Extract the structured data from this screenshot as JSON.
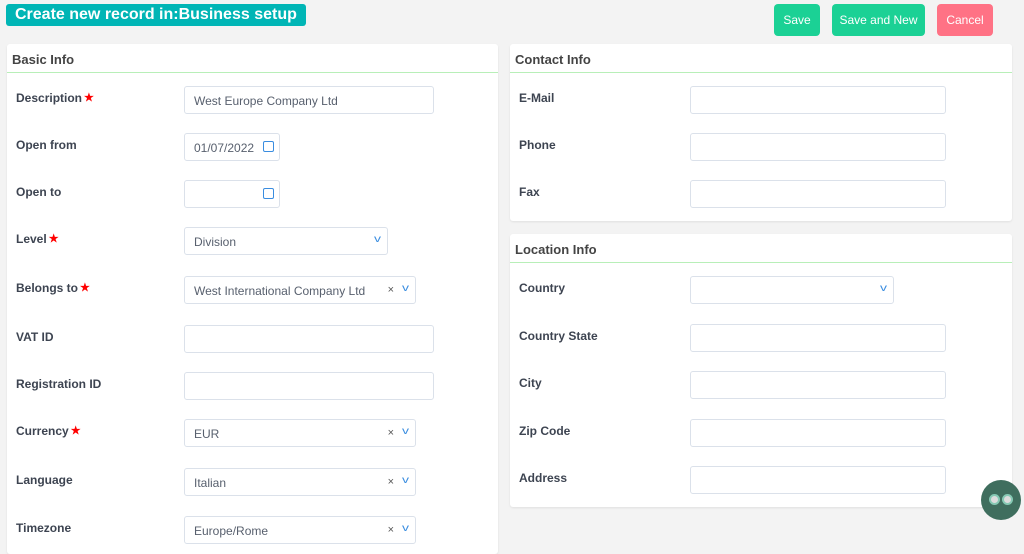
{
  "header": {
    "title": "Create new record in:Business setup",
    "save": "Save",
    "save_new": "Save and New",
    "cancel": "Cancel"
  },
  "basic": {
    "title": "Basic Info",
    "fields": [
      {
        "label": "Description",
        "required": true,
        "value": "West Europe Company Ltd",
        "type": "text"
      },
      {
        "label": "Open from",
        "required": false,
        "value": "01/07/2022",
        "type": "date"
      },
      {
        "label": "Open to",
        "required": false,
        "value": "",
        "type": "date"
      },
      {
        "label": "Level",
        "required": true,
        "value": "Division",
        "type": "select"
      },
      {
        "label": "Belongs to",
        "required": true,
        "value": "West International Company Ltd",
        "type": "select-clear"
      },
      {
        "label": "VAT ID",
        "required": false,
        "value": "",
        "type": "text"
      },
      {
        "label": "Registration ID",
        "required": false,
        "value": "",
        "type": "text"
      },
      {
        "label": "Currency",
        "required": true,
        "value": "EUR",
        "type": "select-clear"
      },
      {
        "label": "Language",
        "required": false,
        "value": "Italian",
        "type": "select-clear"
      },
      {
        "label": "Timezone",
        "required": false,
        "value": "Europe/Rome",
        "type": "select-clear"
      }
    ]
  },
  "contact": {
    "title": "Contact Info",
    "fields": [
      {
        "label": "E-Mail",
        "value": "",
        "type": "text"
      },
      {
        "label": "Phone",
        "value": "",
        "type": "text"
      },
      {
        "label": "Fax",
        "value": "",
        "type": "text"
      }
    ]
  },
  "location": {
    "title": "Location Info",
    "fields": [
      {
        "label": "Country",
        "value": "",
        "type": "select"
      },
      {
        "label": "Country State",
        "value": "",
        "type": "text"
      },
      {
        "label": "City",
        "value": "",
        "type": "text"
      },
      {
        "label": "Zip Code",
        "value": "",
        "type": "text"
      },
      {
        "label": "Address",
        "value": "",
        "type": "text"
      }
    ]
  },
  "colors": {
    "title_bg": "#00b5b5",
    "save": "#1bd195",
    "cancel": "#ff7285",
    "accent": "#3a8de0"
  },
  "assistant": {
    "icon": "owl-icon"
  }
}
